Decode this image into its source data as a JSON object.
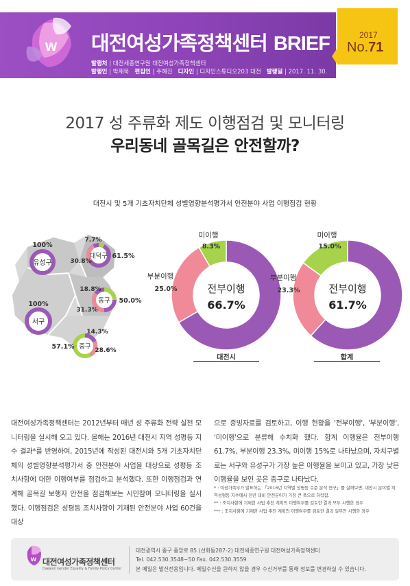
{
  "header": {
    "brand_title_ko": "대전여성가족정책센터",
    "brand_title_en": "BRIEF",
    "meta1_label": "발행처",
    "meta1_text": "대전세종연구원 대전여성가족정책센터",
    "meta2_publisher_label": "발행인",
    "meta2_publisher": "박재묵",
    "meta2_editor_label": "편집인",
    "meta2_editor": "주혜진",
    "meta2_design_label": "디자인",
    "meta2_design": "디자인스튜디오203 대전",
    "meta2_date_label": "발행일",
    "meta2_date": "2017. 11. 30.",
    "issue_year": "2017",
    "issue_prefix": "No.",
    "issue_number": "71",
    "colors": {
      "purple": "#8e44b8",
      "yellow": "#f6c514"
    }
  },
  "headline": {
    "line1": "2017 성 주류화 제도 이행점검 및 모니터링",
    "line2": "우리동네 골목길은 안전할까?"
  },
  "figure": {
    "title": "대전시 및 5개 기초자치단체 성별영향분석평가서 안전분야 사업 이행점검 현황",
    "districts": [
      {
        "name": "유성구",
        "label": "100%"
      },
      {
        "name": "대덕구",
        "label_top": "7.7%",
        "label_left": "30.8%",
        "label_right": "61.5%"
      },
      {
        "name": "서구",
        "label": "100%"
      },
      {
        "name": "동구",
        "label_top": "18.8%",
        "label_left": "31.3%",
        "label_right": "50.0%"
      },
      {
        "name": "중구",
        "label_top": "14.3%",
        "label_left": "57.1%",
        "label_right": "28.6%"
      }
    ]
  },
  "chart_data": [
    {
      "type": "pie",
      "title": "대전시",
      "categories": [
        "전부이행",
        "부분이행",
        "미이행"
      ],
      "values": [
        66.7,
        25.0,
        8.3
      ],
      "center_label": "전부이행",
      "center_value": "66.7%",
      "label_values": [
        "66.7%",
        "25.0%",
        "8.3%"
      ],
      "colors": [
        "#9b59b6",
        "#f08a98",
        "#a6d34a"
      ]
    },
    {
      "type": "pie",
      "title": "합계",
      "categories": [
        "전부이행",
        "부분이행",
        "미이행"
      ],
      "values": [
        61.7,
        23.3,
        15.0
      ],
      "center_label": "전부이행",
      "center_value": "61.7%",
      "label_values": [
        "61.7%",
        "23.3%",
        "15.0%"
      ],
      "colors": [
        "#9b59b6",
        "#f08a98",
        "#a6d34a"
      ]
    }
  ],
  "body": {
    "left_paragraph": "대전여성가족정책센터는 2012년부터 매년 성 주류화 전략 실천 모니터링을 실시해 오고 있다. 올해는 2016년 대전시 지역 성평등 지수 결과*를 반영하여, 2015년에 작성된 대전시와 5개 기초자치단체의 성별영향분석평가서 중 안전분야 사업을 대상으로 성평등 조치사항에 대한 이행여부를 점검하고 분석했다. 또한 이행점검과 연계해 골목길 보행자 안전을 점검해보는 시민참여 모니터링을 실시했다. 이행점검은 성평등 조치사항이 기재된 안전분야 사업 60건을 대상",
    "right_paragraph": "으로 증빙자료를 검토하고, 이행 현황을 '전부이행', '부분이행', '미이행'으로 분류해 수치화 했다. 합계 이행율은 전부이행 61.7%, 부분이행 23.3%, 미이행 15%로 나타났으며, 자치구별로는 서구와 유성구가 가장 높은 이행율을 보이고 있고, 가장 낮은 이행율을 보인 곳은 중구로 나타났다.",
    "footnotes": [
      "* : 여성가족부가 발표하는 「2016년 지역별 성평등 수준 분석 연구」를 살펴보면, 대전시 분야별 지역성평등 지수에서 전년 대비 안전분야가 가장 큰 폭으로 하락함.",
      "** : 조치사항에 기재한 사업 추진 계획의 이행여부를 검토한 결과 모두 시행한 경우",
      "*** : 조치사항에 기재한 사업 추진 계획의 이행여부를 검토한 결과 일부만 시행한 경우"
    ]
  },
  "footer": {
    "org_name": "대전여성가족정책센터",
    "org_name_en": "Daejeon Gender Equality & Family Policy Center",
    "address": "대전광역시 중구 중앙로 85 (선화동287-2) 대전세종연구원 대전여성가족정책센터",
    "contact": "Tel. 042.530.3548~50   Fax. 042.530.3559",
    "notice": "본 메일은 발신전용입니다. 메일수신을 원하지 않을 경우 수신거부를 통해 정보를 변경하실 수 있습니다."
  }
}
